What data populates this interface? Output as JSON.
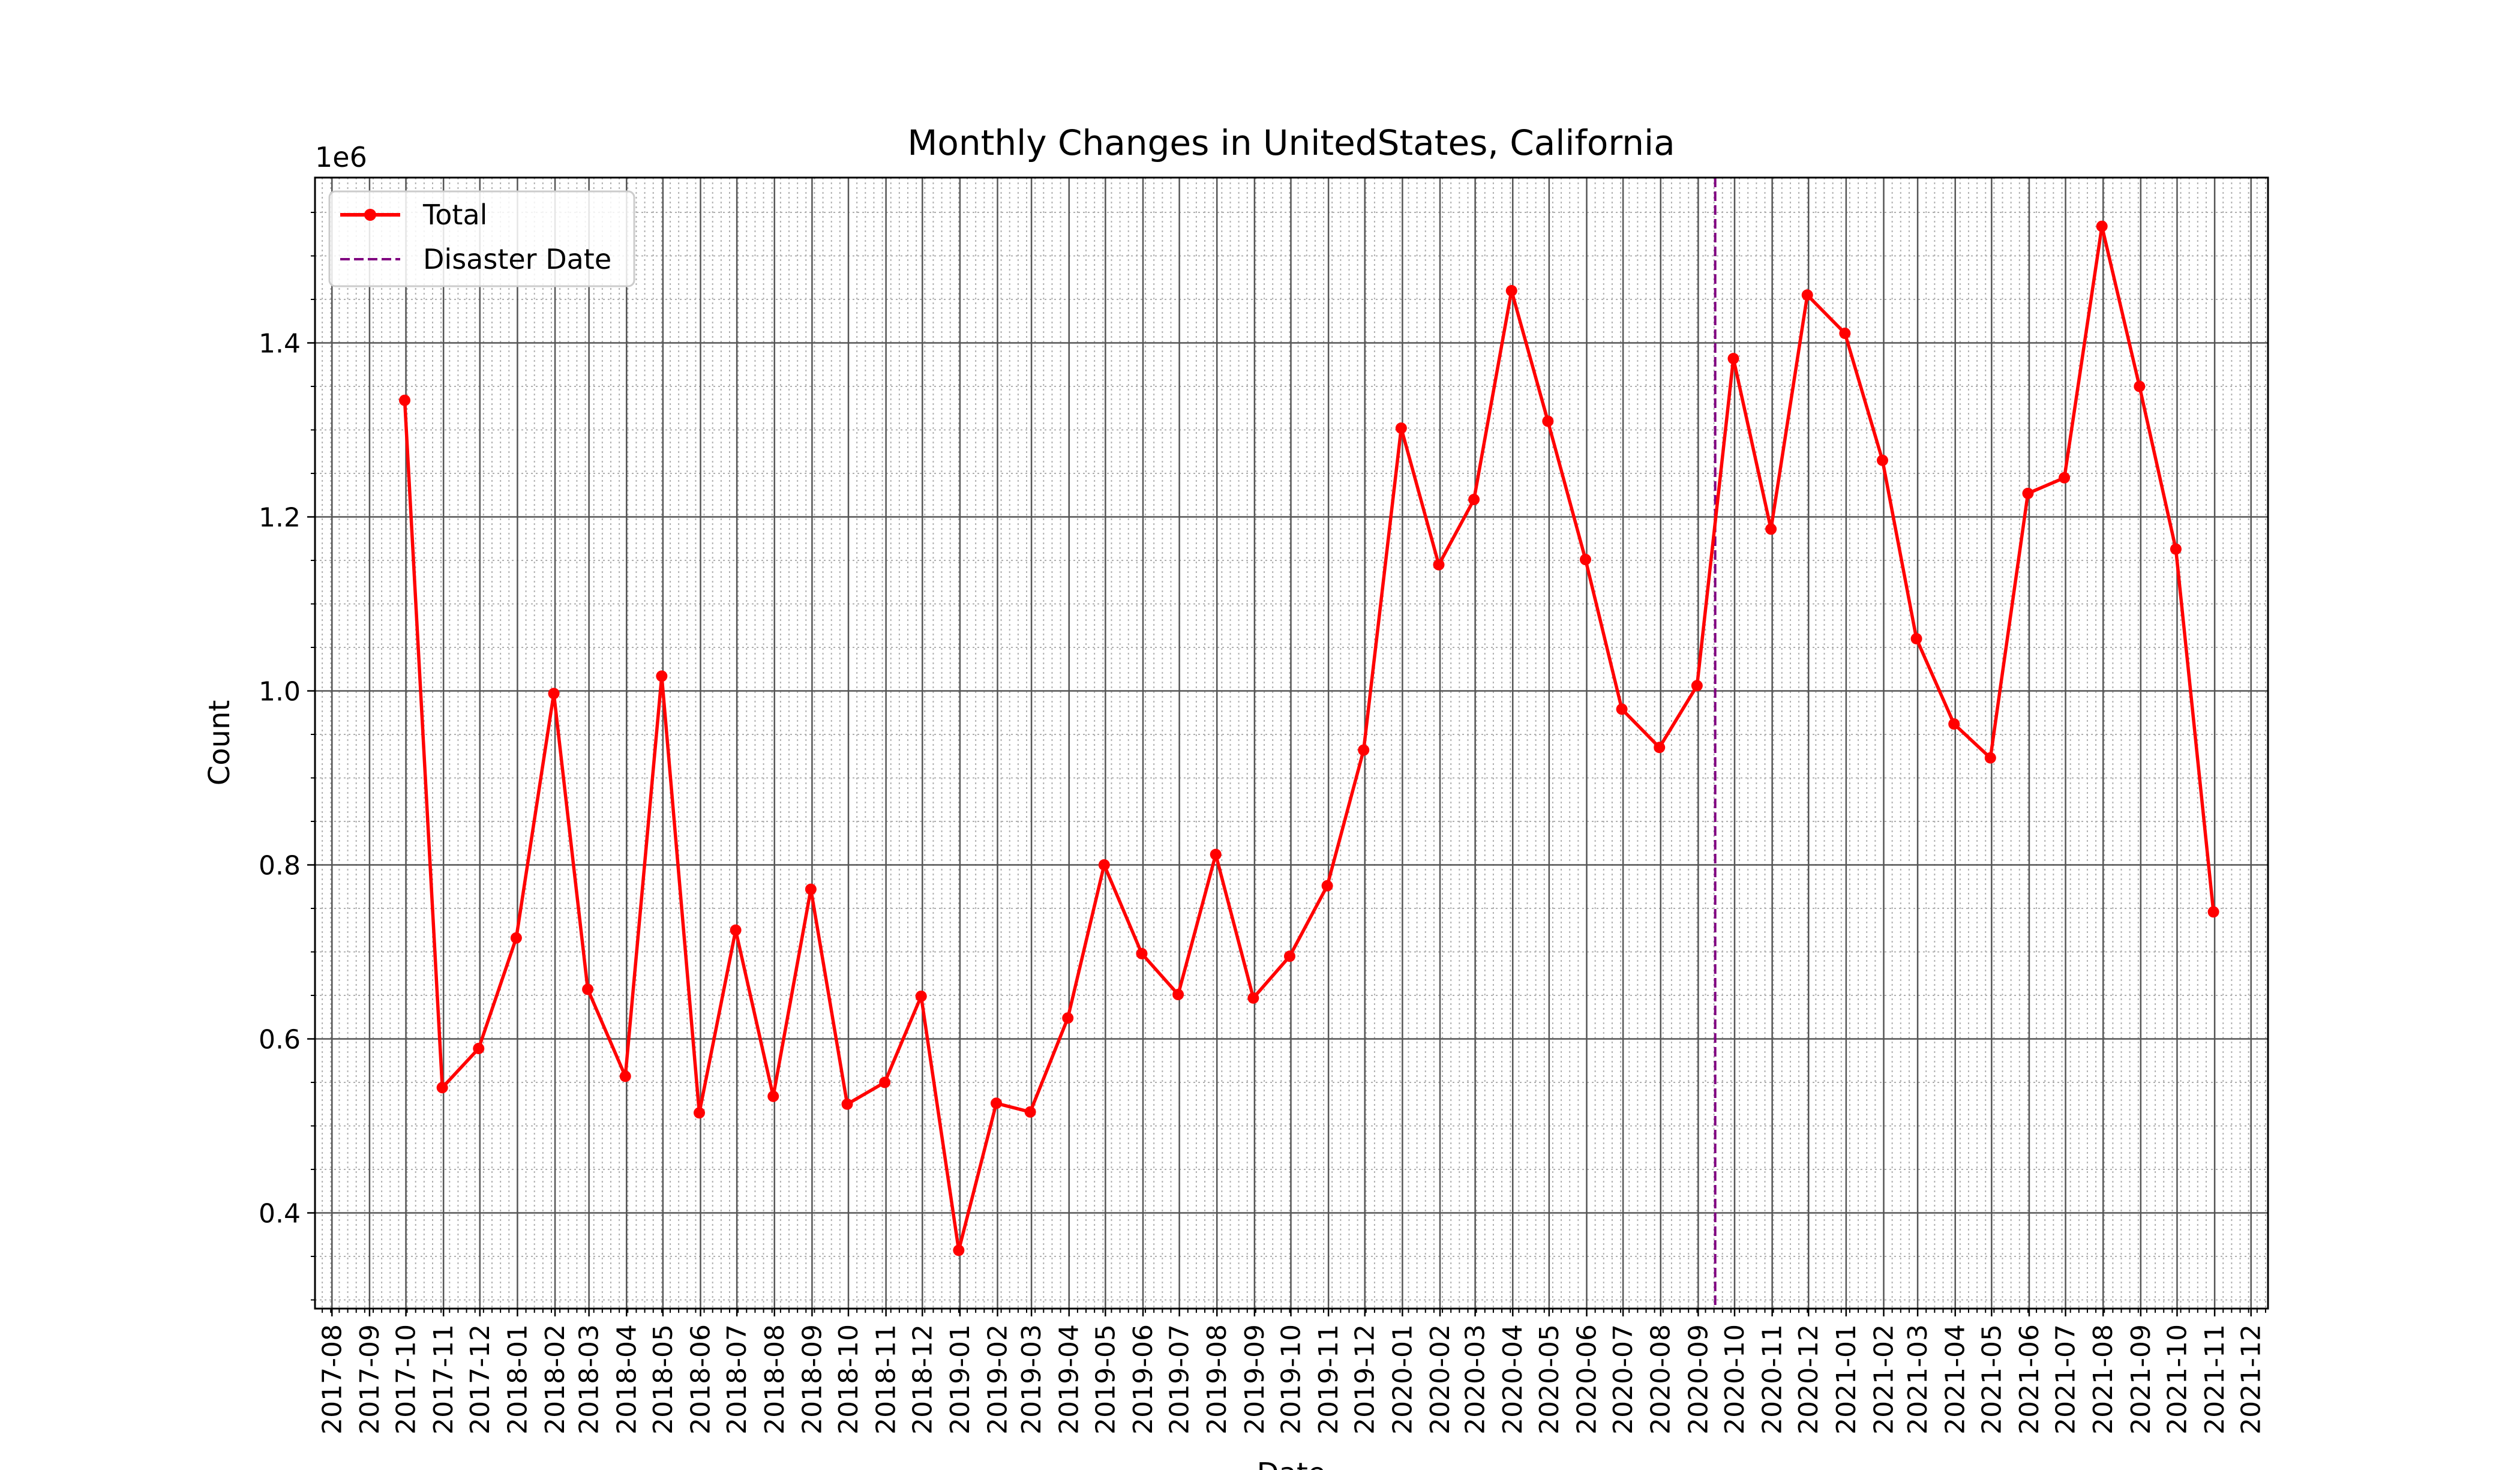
{
  "chart_data": {
    "type": "line",
    "title": "Monthly Changes in UnitedStates, California",
    "xlabel": "Date",
    "ylabel": "Count",
    "y_multiplier_label": "1e6",
    "ylim": [
      0.29,
      1.59
    ],
    "xlim": [
      "2017-07-18",
      "2021-12-15"
    ],
    "yticks": [
      0.4,
      0.6,
      0.8,
      1.0,
      1.2,
      1.4
    ],
    "ytick_labels": [
      "0.4",
      "0.6",
      "0.8",
      "1.0",
      "1.2",
      "1.4"
    ],
    "xtick_labels": [
      "2017-08",
      "2017-09",
      "2017-10",
      "2017-11",
      "2017-12",
      "2018-01",
      "2018-02",
      "2018-03",
      "2018-04",
      "2018-05",
      "2018-06",
      "2018-07",
      "2018-08",
      "2018-09",
      "2018-10",
      "2018-11",
      "2018-12",
      "2019-01",
      "2019-02",
      "2019-03",
      "2019-04",
      "2019-05",
      "2019-06",
      "2019-07",
      "2019-08",
      "2019-09",
      "2019-10",
      "2019-11",
      "2019-12",
      "2020-01",
      "2020-02",
      "2020-03",
      "2020-04",
      "2020-05",
      "2020-06",
      "2020-07",
      "2020-08",
      "2020-09",
      "2020-10",
      "2020-11",
      "2020-12",
      "2021-01",
      "2021-02",
      "2021-03",
      "2021-04",
      "2021-05",
      "2021-06",
      "2021-07",
      "2021-08",
      "2021-09",
      "2021-10",
      "2021-11",
      "2021-12"
    ],
    "grid": true,
    "legend": "upper left",
    "legend_entries": [
      "Total",
      "Disaster Date"
    ],
    "disaster_date": "2020-09-15",
    "series": [
      {
        "name": "Total",
        "color": "#ff0000",
        "x": [
          "2017-09-30",
          "2017-10-31",
          "2017-11-30",
          "2017-12-31",
          "2018-01-31",
          "2018-02-28",
          "2018-03-31",
          "2018-04-30",
          "2018-05-31",
          "2018-06-30",
          "2018-07-31",
          "2018-08-31",
          "2018-09-30",
          "2018-10-31",
          "2018-11-30",
          "2018-12-31",
          "2019-01-31",
          "2019-02-28",
          "2019-03-31",
          "2019-04-30",
          "2019-05-31",
          "2019-06-30",
          "2019-07-31",
          "2019-08-31",
          "2019-09-30",
          "2019-10-31",
          "2019-11-30",
          "2019-12-31",
          "2020-01-31",
          "2020-02-29",
          "2020-03-31",
          "2020-04-30",
          "2020-05-31",
          "2020-06-30",
          "2020-07-31",
          "2020-08-31",
          "2020-09-30",
          "2020-10-31",
          "2020-11-30",
          "2020-12-31",
          "2021-01-31",
          "2021-02-28",
          "2021-03-31",
          "2021-04-30",
          "2021-05-31",
          "2021-06-30",
          "2021-07-31",
          "2021-08-31",
          "2021-09-30",
          "2021-10-31"
        ],
        "values": [
          1.334,
          0.544,
          0.589,
          0.716,
          0.997,
          0.657,
          0.557,
          1.017,
          0.515,
          0.725,
          0.534,
          0.772,
          0.525,
          0.55,
          0.649,
          0.357,
          0.526,
          0.516,
          0.624,
          0.8,
          0.698,
          0.651,
          0.812,
          0.647,
          0.695,
          0.776,
          0.932,
          1.302,
          1.145,
          1.22,
          1.46,
          1.31,
          1.151,
          0.979,
          0.935,
          1.006,
          1.382,
          1.186,
          1.455,
          1.411,
          1.265,
          1.06,
          0.962,
          0.923,
          1.227,
          1.245,
          1.534,
          1.35,
          1.163,
          0.746
        ]
      }
    ],
    "disaster_color": "#800080"
  }
}
